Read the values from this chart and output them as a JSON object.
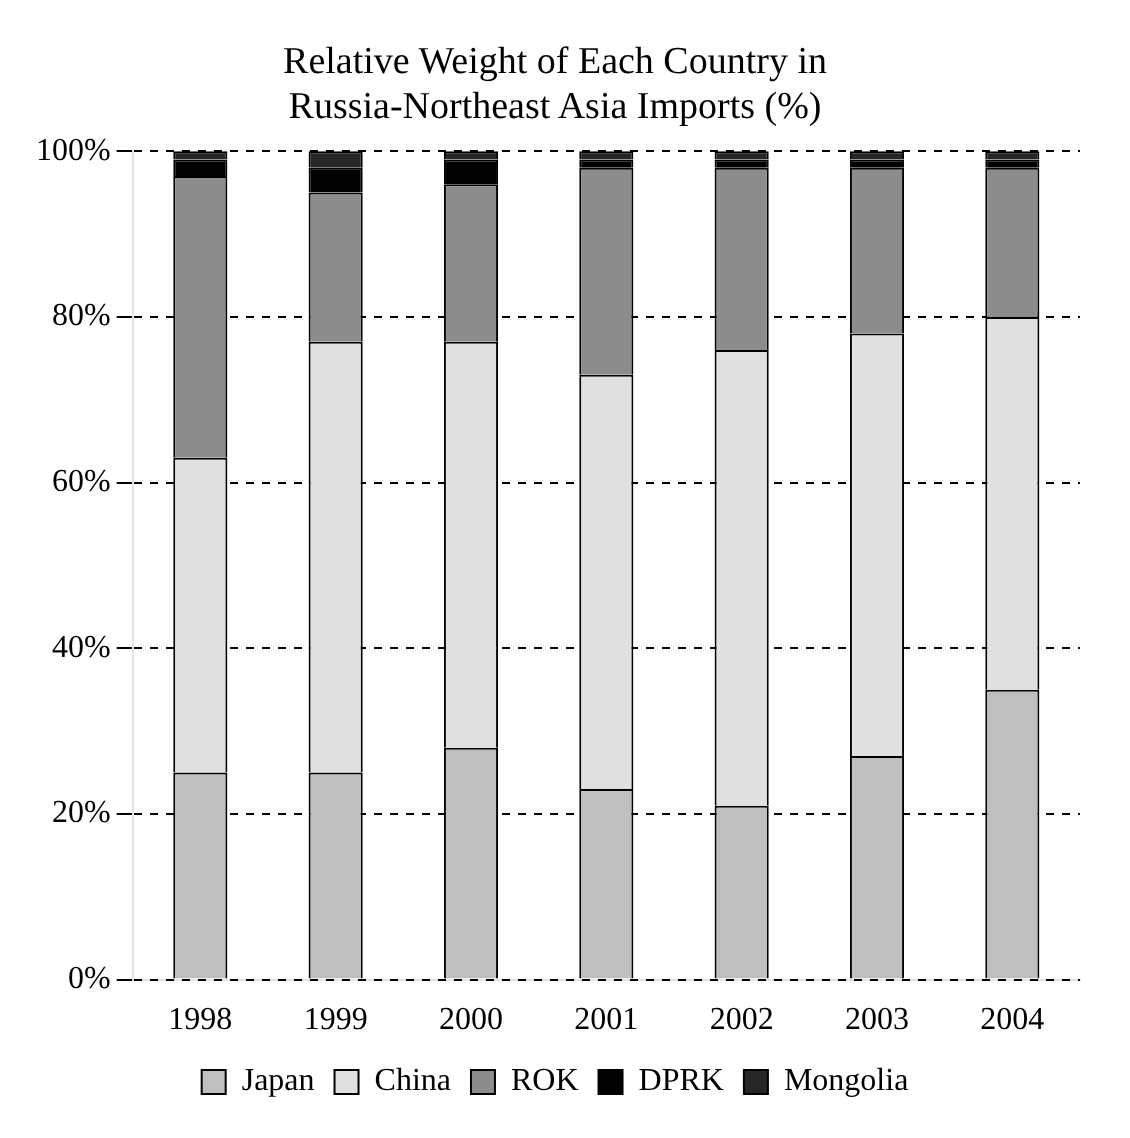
{
  "chart_data": {
    "type": "bar",
    "title": [
      "Relative Weight of Each Country in",
      "Russia-Northeast Asia Imports (%)"
    ],
    "stacked": true,
    "categories": [
      "1998",
      "1999",
      "2000",
      "2001",
      "2002",
      "2003",
      "2004"
    ],
    "series": [
      {
        "name": "Japan",
        "color": "#bfbfbf",
        "values": [
          25,
          25,
          28,
          23,
          21,
          27,
          35
        ]
      },
      {
        "name": "China",
        "color": "#e0e0e0",
        "values": [
          38,
          52,
          49,
          50,
          55,
          51,
          45
        ]
      },
      {
        "name": "ROK",
        "color": "#8c8c8c",
        "values": [
          34,
          18,
          19,
          25,
          22,
          20,
          18
        ]
      },
      {
        "name": "DPRK",
        "color": "#000000",
        "values": [
          2,
          3,
          3,
          1,
          1,
          1,
          1
        ]
      },
      {
        "name": "Mongolia",
        "color": "#262626",
        "values": [
          1,
          2,
          1,
          1,
          1,
          1,
          1
        ]
      }
    ],
    "ylim": [
      0,
      100
    ],
    "yticks": [
      {
        "value": 0,
        "label": "0%"
      },
      {
        "value": 20,
        "label": "20%"
      },
      {
        "value": 40,
        "label": "40%"
      },
      {
        "value": 60,
        "label": "60%"
      },
      {
        "value": 80,
        "label": "80%"
      },
      {
        "value": 100,
        "label": "100%"
      }
    ],
    "grid": "y",
    "legend": "bottom"
  }
}
